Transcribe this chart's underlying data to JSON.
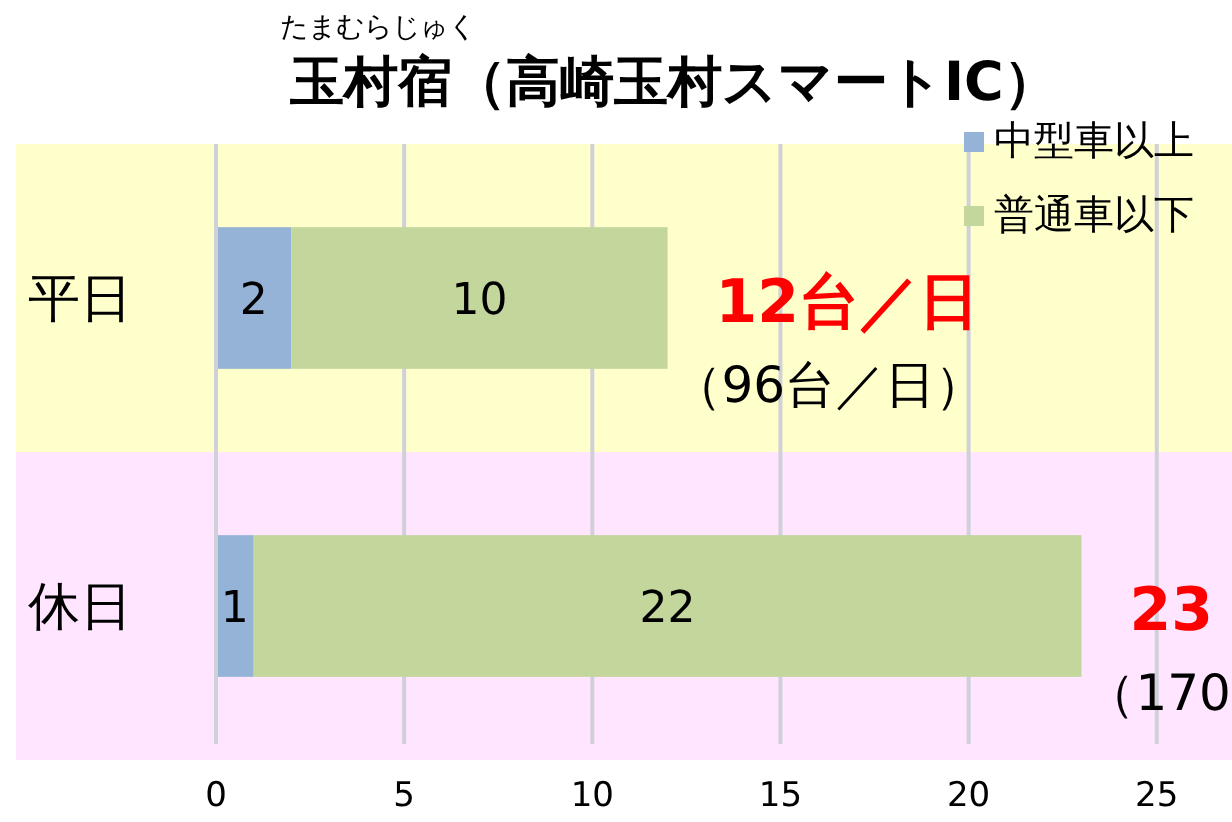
{
  "chart_data": {
    "type": "bar",
    "orientation": "horizontal",
    "stacked": true,
    "title": "玉村宿（高崎玉村スマートIC）",
    "subtitle": "たまむらじゅく",
    "categories": [
      "平日",
      "休日"
    ],
    "series": [
      {
        "name": "中型車以上",
        "color": "#95b3d7",
        "values": [
          2,
          1
        ]
      },
      {
        "name": "普通車以下",
        "color": "#c3d69b",
        "values": [
          10,
          22
        ]
      }
    ],
    "data_labels": true,
    "xlim": [
      0,
      27
    ],
    "xticks": [
      0,
      5,
      10,
      15,
      20,
      25
    ],
    "grid": "x",
    "legend": "top right",
    "bands": [
      {
        "axis": "y",
        "from": "平日",
        "to": "平日",
        "color": "#ffffcc"
      },
      {
        "axis": "y",
        "from": "休日",
        "to": "休日",
        "color": "#ffe5ff"
      }
    ],
    "annotations": [
      "12台／日",
      "（96台／日）",
      "23",
      "（170"
    ]
  }
}
